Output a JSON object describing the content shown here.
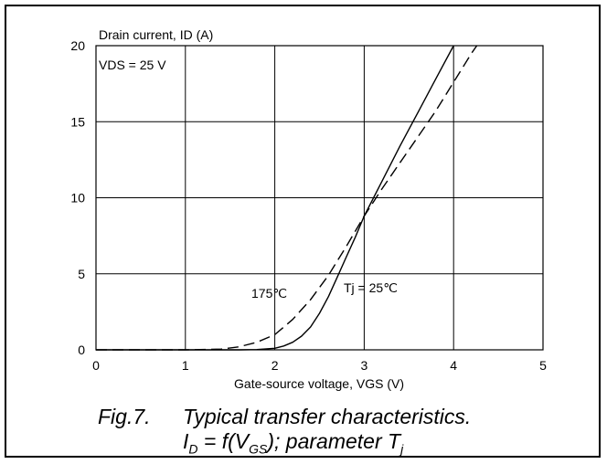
{
  "chart_data": {
    "type": "line",
    "title": "",
    "ylabel": "Drain current, ID (A)",
    "xlabel": "Gate-source voltage, VGS (V)",
    "xlim": [
      0,
      5
    ],
    "ylim": [
      0,
      20
    ],
    "xticks": [
      0,
      1,
      2,
      3,
      4,
      5
    ],
    "yticks": [
      0,
      5,
      10,
      15,
      20
    ],
    "grid": true,
    "annotations": {
      "condition": "VDS = 25 V",
      "hot_label": "175℃",
      "cold_label": "Tj = 25℃"
    },
    "series": [
      {
        "name": "Tj = 25℃",
        "style": "solid",
        "x": [
          0,
          1.0,
          1.6,
          1.8,
          2.0,
          2.1,
          2.2,
          2.3,
          2.4,
          2.5,
          2.6,
          2.7,
          2.8,
          2.9,
          3.0,
          3.2,
          3.4,
          3.6,
          3.8,
          4.0
        ],
        "y": [
          0,
          0,
          0,
          0.02,
          0.1,
          0.25,
          0.5,
          0.9,
          1.5,
          2.4,
          3.5,
          4.8,
          6.1,
          7.4,
          8.8,
          11.1,
          13.4,
          15.6,
          17.8,
          20.0
        ]
      },
      {
        "name": "175℃",
        "style": "dashed",
        "x": [
          0,
          1.0,
          1.4,
          1.6,
          1.8,
          2.0,
          2.2,
          2.4,
          2.6,
          2.8,
          3.0,
          3.2,
          3.4,
          3.6,
          3.8,
          4.0,
          4.2,
          4.26
        ],
        "y": [
          0,
          0,
          0.05,
          0.2,
          0.5,
          1.0,
          2.0,
          3.3,
          4.9,
          6.8,
          8.8,
          10.6,
          12.3,
          14.0,
          15.7,
          17.6,
          19.5,
          20.0
        ]
      }
    ]
  },
  "caption": {
    "fig_number": "Fig.7.",
    "title": "Typical transfer characteristics.",
    "eq_prefix": "I",
    "eq_sub1": "D",
    "eq_mid": " = f(V",
    "eq_sub2": "GS",
    "eq_rest": "); parameter T",
    "eq_sub3": "j"
  }
}
